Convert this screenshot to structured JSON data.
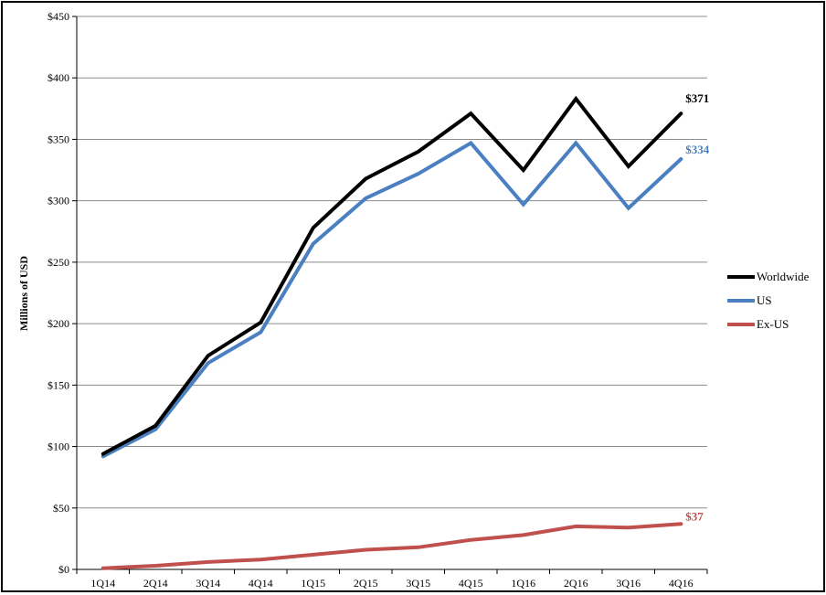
{
  "chart_data": {
    "type": "line",
    "title": "",
    "xlabel": "",
    "ylabel": "Millions of USD",
    "categories": [
      "1Q14",
      "2Q14",
      "3Q14",
      "4Q14",
      "1Q15",
      "2Q15",
      "3Q15",
      "4Q15",
      "1Q16",
      "2Q16",
      "3Q16",
      "4Q16"
    ],
    "ylim": [
      0,
      450
    ],
    "yticks": [
      0,
      50,
      100,
      150,
      200,
      250,
      300,
      350,
      400,
      450
    ],
    "ytick_labels": [
      "$0",
      "$50",
      "$100",
      "$150",
      "$200",
      "$250",
      "$300",
      "$350",
      "$400",
      "$450"
    ],
    "grid": true,
    "legend_position": "right",
    "series": [
      {
        "name": "Worldwide",
        "color": "#000000",
        "values": [
          94,
          117,
          174,
          201,
          278,
          318,
          340,
          371,
          325,
          383,
          328,
          371
        ],
        "end_label": "$371"
      },
      {
        "name": "US",
        "color": "#4a7fc1",
        "values": [
          92,
          114,
          168,
          193,
          265,
          302,
          322,
          347,
          297,
          347,
          294,
          334
        ],
        "end_label": "$334"
      },
      {
        "name": "Ex-US",
        "color": "#c0504d",
        "values": [
          1,
          3,
          6,
          8,
          12,
          16,
          18,
          24,
          28,
          35,
          34,
          37
        ],
        "end_label": "$37"
      }
    ]
  }
}
